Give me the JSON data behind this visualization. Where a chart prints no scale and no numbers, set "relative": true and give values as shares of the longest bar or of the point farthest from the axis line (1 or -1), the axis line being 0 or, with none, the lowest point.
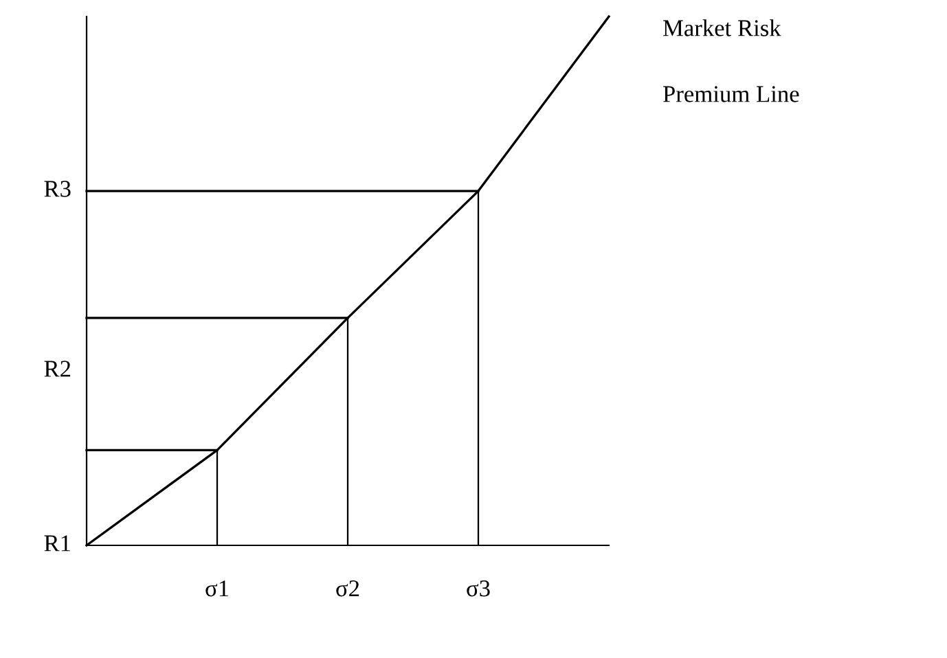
{
  "chart_data": {
    "type": "line",
    "relative": true,
    "categories": [
      null,
      "σ1",
      "σ2",
      "σ3",
      null
    ],
    "series": [
      {
        "color": "#000000",
        "values": [
          0,
          0.18,
          0.43,
          0.67,
          1
        ]
      },
      {
        "color": "#000000",
        "values": [
          0.18,
          0.18,
          null,
          null,
          null
        ]
      },
      {
        "color": "#000000",
        "values": [
          0.43,
          0.43,
          0.43,
          null,
          null
        ]
      },
      {
        "color": "#000000",
        "values": [
          0.67,
          0.67,
          0.67,
          0.67,
          null
        ]
      },
      {
        "type": "bar",
        "color": "#000000",
        "values": [
          null,
          0.18,
          0.43,
          0.67,
          null
        ]
      }
    ],
    "annotations": [
      "Market Risk",
      "Premium Line",
      "R1",
      "R2",
      "R3"
    ]
  }
}
